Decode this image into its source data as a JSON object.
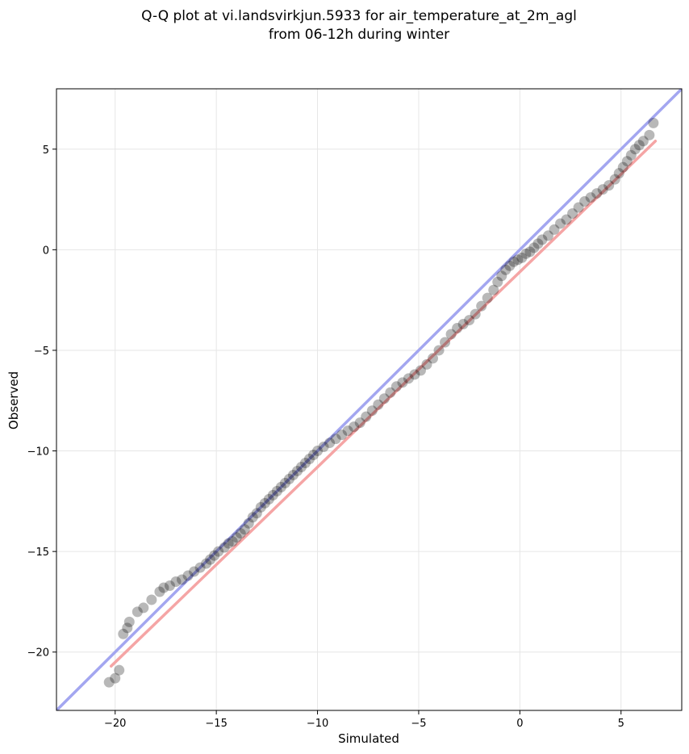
{
  "chart_data": {
    "type": "scatter",
    "title_line1": "Q-Q plot at vi.landsvirkjun.5933 for air_temperature_at_2m_agl",
    "title_line2": "from 06-12h during winter",
    "xlabel": "Simulated",
    "ylabel": "Observed",
    "xlim": [
      -22.9,
      8.0
    ],
    "ylim": [
      -22.9,
      8.0
    ],
    "xticks": [
      -20,
      -15,
      -10,
      -5,
      0,
      5
    ],
    "yticks": [
      -20,
      -15,
      -10,
      -5,
      0,
      5
    ],
    "xtick_labels": [
      "−20",
      "−15",
      "−10",
      "−5",
      "0",
      "5"
    ],
    "ytick_labels": [
      "−20",
      "−15",
      "−10",
      "−5",
      "0",
      "5"
    ],
    "grid": true,
    "reference_line": {
      "color": "#a3a6f0",
      "x": [
        -22.9,
        8.0
      ],
      "y": [
        -22.9,
        8.0
      ]
    },
    "fit_line": {
      "color": "#f5a5a5",
      "x": [
        -20.2,
        6.7
      ],
      "y": [
        -20.7,
        5.4
      ]
    },
    "series": [
      {
        "marker_color": "#000000",
        "points": [
          [
            -20.3,
            -21.5
          ],
          [
            -20.0,
            -21.3
          ],
          [
            -19.8,
            -20.9
          ],
          [
            -19.6,
            -19.1
          ],
          [
            -19.4,
            -18.8
          ],
          [
            -19.3,
            -18.5
          ],
          [
            -18.9,
            -18.0
          ],
          [
            -18.6,
            -17.8
          ],
          [
            -18.2,
            -17.4
          ],
          [
            -17.8,
            -17.0
          ],
          [
            -17.6,
            -16.8
          ],
          [
            -17.3,
            -16.7
          ],
          [
            -17.0,
            -16.5
          ],
          [
            -16.7,
            -16.4
          ],
          [
            -16.4,
            -16.2
          ],
          [
            -16.1,
            -16.0
          ],
          [
            -15.8,
            -15.8
          ],
          [
            -15.5,
            -15.6
          ],
          [
            -15.3,
            -15.4
          ],
          [
            -15.1,
            -15.2
          ],
          [
            -14.9,
            -15.0
          ],
          [
            -14.6,
            -14.8
          ],
          [
            -14.4,
            -14.6
          ],
          [
            -14.2,
            -14.5
          ],
          [
            -14.0,
            -14.3
          ],
          [
            -13.8,
            -14.1
          ],
          [
            -13.6,
            -13.9
          ],
          [
            -13.4,
            -13.6
          ],
          [
            -13.2,
            -13.3
          ],
          [
            -13.0,
            -13.1
          ],
          [
            -12.8,
            -12.8
          ],
          [
            -12.6,
            -12.6
          ],
          [
            -12.4,
            -12.4
          ],
          [
            -12.2,
            -12.2
          ],
          [
            -12.0,
            -12.0
          ],
          [
            -11.8,
            -11.8
          ],
          [
            -11.6,
            -11.6
          ],
          [
            -11.4,
            -11.4
          ],
          [
            -11.2,
            -11.2
          ],
          [
            -11.0,
            -11.0
          ],
          [
            -10.8,
            -10.8
          ],
          [
            -10.6,
            -10.6
          ],
          [
            -10.4,
            -10.4
          ],
          [
            -10.2,
            -10.2
          ],
          [
            -10.0,
            -10.0
          ],
          [
            -9.7,
            -9.8
          ],
          [
            -9.4,
            -9.6
          ],
          [
            -9.1,
            -9.4
          ],
          [
            -8.8,
            -9.2
          ],
          [
            -8.5,
            -9.0
          ],
          [
            -8.2,
            -8.8
          ],
          [
            -7.9,
            -8.6
          ],
          [
            -7.6,
            -8.3
          ],
          [
            -7.3,
            -8.0
          ],
          [
            -7.0,
            -7.7
          ],
          [
            -6.7,
            -7.4
          ],
          [
            -6.4,
            -7.1
          ],
          [
            -6.1,
            -6.8
          ],
          [
            -5.8,
            -6.6
          ],
          [
            -5.5,
            -6.4
          ],
          [
            -5.2,
            -6.2
          ],
          [
            -4.9,
            -6.0
          ],
          [
            -4.6,
            -5.7
          ],
          [
            -4.3,
            -5.4
          ],
          [
            -4.0,
            -5.0
          ],
          [
            -3.7,
            -4.6
          ],
          [
            -3.4,
            -4.2
          ],
          [
            -3.1,
            -3.9
          ],
          [
            -2.8,
            -3.7
          ],
          [
            -2.5,
            -3.5
          ],
          [
            -2.2,
            -3.2
          ],
          [
            -1.9,
            -2.8
          ],
          [
            -1.6,
            -2.4
          ],
          [
            -1.3,
            -2.0
          ],
          [
            -1.1,
            -1.6
          ],
          [
            -0.9,
            -1.3
          ],
          [
            -0.7,
            -1.0
          ],
          [
            -0.5,
            -0.8
          ],
          [
            -0.3,
            -0.6
          ],
          [
            -0.1,
            -0.5
          ],
          [
            0.1,
            -0.4
          ],
          [
            0.3,
            -0.2
          ],
          [
            0.5,
            -0.1
          ],
          [
            0.7,
            0.1
          ],
          [
            0.9,
            0.3
          ],
          [
            1.1,
            0.5
          ],
          [
            1.4,
            0.7
          ],
          [
            1.7,
            1.0
          ],
          [
            2.0,
            1.3
          ],
          [
            2.3,
            1.5
          ],
          [
            2.6,
            1.8
          ],
          [
            2.9,
            2.1
          ],
          [
            3.2,
            2.4
          ],
          [
            3.5,
            2.6
          ],
          [
            3.8,
            2.8
          ],
          [
            4.1,
            3.0
          ],
          [
            4.4,
            3.2
          ],
          [
            4.7,
            3.5
          ],
          [
            4.9,
            3.8
          ],
          [
            5.1,
            4.1
          ],
          [
            5.3,
            4.4
          ],
          [
            5.5,
            4.7
          ],
          [
            5.7,
            5.0
          ],
          [
            5.9,
            5.2
          ],
          [
            6.1,
            5.4
          ],
          [
            6.4,
            5.7
          ],
          [
            6.6,
            6.3
          ]
        ]
      }
    ]
  }
}
